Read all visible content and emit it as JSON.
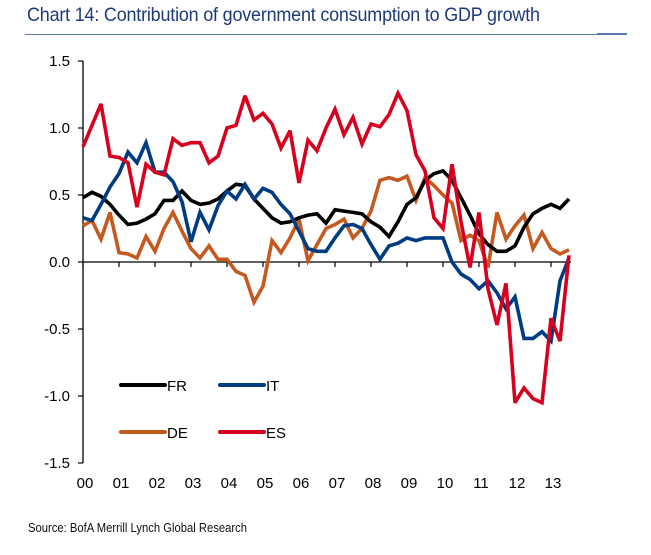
{
  "title": "Chart 14: Contribution of government consumption to GDP growth",
  "source": "Source: BofA Merrill Lynch Global Research",
  "chart_data": {
    "type": "line",
    "title": "Chart 14: Contribution of government consumption to GDP growth",
    "xlabel": "",
    "ylabel": "",
    "x_tick_labels": [
      "00",
      "01",
      "02",
      "03",
      "04",
      "05",
      "06",
      "07",
      "08",
      "09",
      "10",
      "11",
      "12",
      "13"
    ],
    "x_frequency": "quarterly, 2000Q1 onward",
    "y_ticks": [
      1.5,
      1.0,
      0.5,
      0.0,
      -0.5,
      -1.0,
      -1.5
    ],
    "y_tick_labels": [
      "1.5",
      "1.0",
      "0.5",
      "0.0",
      "-0.5",
      "-1.0",
      "-1.5"
    ],
    "ylim": [
      -1.5,
      1.5
    ],
    "grid": false,
    "legend_placement": "bottom-left",
    "series": [
      {
        "name": "FR",
        "color": "#000000",
        "values": [
          0.48,
          0.52,
          0.49,
          0.43,
          0.35,
          0.28,
          0.29,
          0.32,
          0.36,
          0.46,
          0.46,
          0.53,
          0.46,
          0.43,
          0.44,
          0.47,
          0.53,
          0.58,
          0.57,
          0.47,
          0.4,
          0.33,
          0.29,
          0.3,
          0.33,
          0.35,
          0.36,
          0.29,
          0.39,
          0.38,
          0.37,
          0.36,
          0.3,
          0.26,
          0.19,
          0.3,
          0.43,
          0.48,
          0.61,
          0.66,
          0.68,
          0.61,
          0.48,
          0.35,
          0.21,
          0.13,
          0.08,
          0.08,
          0.12,
          0.26,
          0.36,
          0.4,
          0.43,
          0.4,
          0.47
        ]
      },
      {
        "name": "IT",
        "color": "#003c82",
        "values": [
          0.33,
          0.31,
          0.43,
          0.56,
          0.66,
          0.82,
          0.74,
          0.89,
          0.67,
          0.67,
          0.6,
          0.45,
          0.15,
          0.37,
          0.24,
          0.42,
          0.53,
          0.47,
          0.58,
          0.47,
          0.55,
          0.52,
          0.43,
          0.36,
          0.23,
          0.1,
          0.08,
          0.08,
          0.18,
          0.27,
          0.28,
          0.25,
          0.13,
          0.02,
          0.12,
          0.14,
          0.18,
          0.16,
          0.18,
          0.18,
          0.18,
          0.0,
          -0.09,
          -0.13,
          -0.2,
          -0.14,
          -0.23,
          -0.35,
          -0.26,
          -0.57,
          -0.57,
          -0.52,
          -0.59,
          -0.14,
          0.03
        ]
      },
      {
        "name": "DE",
        "color": "#c55a20",
        "values": [
          0.27,
          0.31,
          0.17,
          0.37,
          0.07,
          0.06,
          0.03,
          0.19,
          0.08,
          0.25,
          0.37,
          0.23,
          0.1,
          0.03,
          0.12,
          0.02,
          0.02,
          -0.07,
          -0.1,
          -0.3,
          -0.18,
          0.16,
          0.07,
          0.18,
          0.32,
          0.01,
          0.13,
          0.25,
          0.28,
          0.32,
          0.18,
          0.25,
          0.38,
          0.61,
          0.63,
          0.61,
          0.64,
          0.46,
          0.63,
          0.57,
          0.5,
          0.44,
          0.16,
          0.2,
          0.16,
          -0.04,
          0.37,
          0.17,
          0.27,
          0.35,
          0.1,
          0.22,
          0.1,
          0.06,
          0.09
        ]
      },
      {
        "name": "ES",
        "color": "#d7001e",
        "values": [
          0.86,
          1.02,
          1.18,
          0.79,
          0.78,
          0.74,
          0.41,
          0.73,
          0.67,
          0.65,
          0.92,
          0.87,
          0.89,
          0.89,
          0.74,
          0.79,
          1.0,
          1.02,
          1.24,
          1.06,
          1.11,
          1.03,
          0.85,
          0.98,
          0.59,
          0.91,
          0.83,
          1.0,
          1.14,
          0.95,
          1.08,
          0.88,
          1.03,
          1.01,
          1.1,
          1.26,
          1.13,
          0.8,
          0.68,
          0.33,
          0.25,
          0.73,
          0.3,
          -0.04,
          0.37,
          -0.2,
          -0.47,
          -0.16,
          -1.05,
          -0.94,
          -1.02,
          -1.05,
          -0.42,
          -0.59,
          0.05
        ]
      }
    ],
    "legend": [
      {
        "name": "FR",
        "color": "#000000"
      },
      {
        "name": "IT",
        "color": "#003c82"
      },
      {
        "name": "DE",
        "color": "#c55a20"
      },
      {
        "name": "ES",
        "color": "#d7001e"
      }
    ]
  }
}
